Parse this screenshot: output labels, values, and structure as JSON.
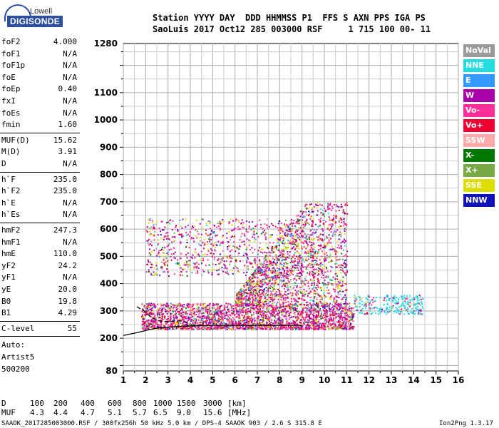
{
  "logo": {
    "line1": "Lowell",
    "line2": "DIGISONDE"
  },
  "header": {
    "row1": "Station YYYY DAY  DDD HHMMSS P1  FFS S AXN PPS IGA PS",
    "row2": "SaoLuis 2017 Oct12 285 003000 RSF     1 715 100 00- 11"
  },
  "params": {
    "group1": [
      {
        "label": "foF2",
        "value": "4.000"
      },
      {
        "label": "foF1",
        "value": "N/A"
      },
      {
        "label": "foF1p",
        "value": "N/A"
      },
      {
        "label": "foE",
        "value": "N/A"
      },
      {
        "label": "foEp",
        "value": "0.40"
      },
      {
        "label": "fxI",
        "value": "N/A"
      },
      {
        "label": "foEs",
        "value": "N/A"
      },
      {
        "label": "fmin",
        "value": "1.60"
      }
    ],
    "group2": [
      {
        "label": "MUF(D)",
        "value": "15.62"
      },
      {
        "label": "M(D)",
        "value": "3.91"
      },
      {
        "label": "D",
        "value": "N/A"
      }
    ],
    "group3": [
      {
        "label": "h`F",
        "value": "235.0"
      },
      {
        "label": "h`F2",
        "value": "235.0"
      },
      {
        "label": "h`E",
        "value": "N/A"
      },
      {
        "label": "h`Es",
        "value": "N/A"
      }
    ],
    "group4": [
      {
        "label": "hmF2",
        "value": "247.3"
      },
      {
        "label": "hmF1",
        "value": "N/A"
      },
      {
        "label": "hmE",
        "value": "110.0"
      },
      {
        "label": "yF2",
        "value": "24.2"
      },
      {
        "label": "yF1",
        "value": "N/A"
      },
      {
        "label": "yE",
        "value": "20.0"
      },
      {
        "label": "B0",
        "value": "19.8"
      },
      {
        "label": "B1",
        "value": "4.29"
      }
    ],
    "group5": [
      {
        "label": "C-level",
        "value": "55"
      }
    ],
    "auto": [
      "Auto:",
      "Artist5",
      "500200"
    ]
  },
  "legend": [
    {
      "label": "NoVal",
      "color": "#999999"
    },
    {
      "label": "NNE",
      "color": "#22dddd"
    },
    {
      "label": "E",
      "color": "#3399ff"
    },
    {
      "label": "W",
      "color": "#aa00aa"
    },
    {
      "label": "Vo-",
      "color": "#ff2e9a"
    },
    {
      "label": "Vo+",
      "color": "#ee0033"
    },
    {
      "label": "SSW",
      "color": "#ffaaaa"
    },
    {
      "label": "X-",
      "color": "#007700"
    },
    {
      "label": "X+",
      "color": "#77aa44"
    },
    {
      "label": "SSE",
      "color": "#dddd00"
    },
    {
      "label": "NNW",
      "color": "#1111bb"
    }
  ],
  "footer": {
    "d_label": "D",
    "d_values": [
      "100",
      "200",
      "400",
      "600",
      "800",
      "1000",
      "1500",
      "3000",
      "[km]"
    ],
    "muf_label": "MUF",
    "muf_values": [
      "4.3",
      "4.4",
      "4.7",
      "5.1",
      "5.7",
      "6.5",
      "9.0",
      "15.6",
      "[MHz]"
    ],
    "bottom_left": "SAAOK_2017285003000.RSF / 300fx256h 50 kHz 5.0 km / DPS-4 SAAOK 903 / 2.6 S 315.8 E",
    "bottom_right": "Ion2Png 1.3.17"
  },
  "chart_data": {
    "type": "scatter",
    "title": "",
    "xlabel": "",
    "ylabel": "",
    "xlim": [
      1,
      16
    ],
    "ylim": [
      80,
      1280
    ],
    "x_ticks": [
      1,
      2,
      3,
      4,
      5,
      6,
      7,
      8,
      9,
      10,
      11,
      12,
      13,
      14,
      15,
      16
    ],
    "y_ticks": [
      80,
      200,
      300,
      400,
      500,
      600,
      700,
      800,
      900,
      1000,
      1100,
      1280
    ],
    "grid": true,
    "legend_position": "right",
    "trace_bands": [
      {
        "name": "F-trace",
        "x_start": 1.8,
        "x_end": 11.3,
        "h_min": 235,
        "h_max": 330
      },
      {
        "name": "F2-echo",
        "x_start": 2.0,
        "x_end": 9.5,
        "h_min": 430,
        "h_max": 640
      },
      {
        "name": "spread-F",
        "x_start": 6.0,
        "x_end": 11.0,
        "h_min": 320,
        "h_max": 700
      },
      {
        "name": "high-freq-diffuse",
        "x_start": 11.3,
        "x_end": 14.4,
        "h_min": 290,
        "h_max": 360
      }
    ],
    "profile_curve": {
      "x": [
        1.0,
        1.6,
        2.2,
        2.6,
        3.0,
        3.4,
        3.8,
        4.0,
        4.5,
        5.0,
        6.0,
        7.0,
        8.0,
        9.0
      ],
      "h": [
        210,
        220,
        232,
        238,
        240,
        243,
        244,
        245,
        246,
        247,
        247,
        247,
        247,
        247
      ]
    },
    "virtual_trace_curve": {
      "x": [
        1.6,
        1.9,
        2.2,
        2.5,
        2.8,
        3.1,
        3.4,
        3.7,
        3.9,
        4.0
      ],
      "h": [
        315,
        302,
        280,
        265,
        262,
        260,
        264,
        262,
        256,
        252
      ]
    }
  }
}
